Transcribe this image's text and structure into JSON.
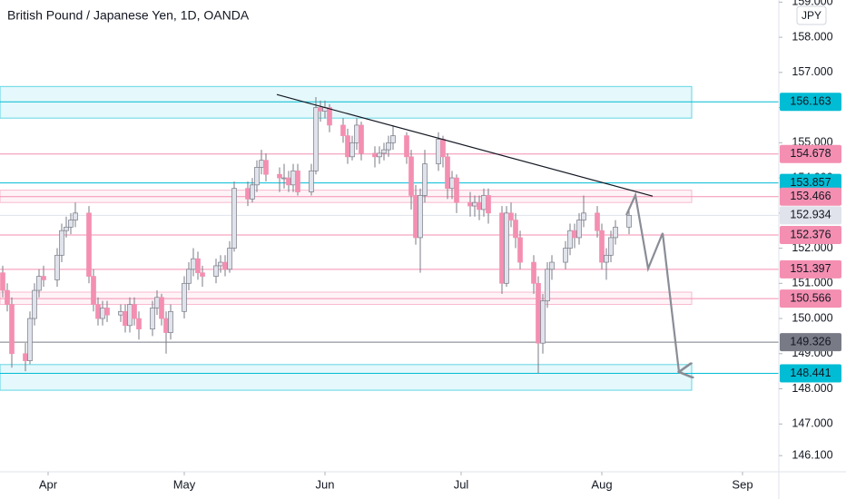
{
  "chart_data": {
    "type": "candlestick",
    "title": "British Pound / Japanese Yen, 1D, OANDA",
    "currency": "JPY",
    "up_color": "#e0e3eb",
    "down_color": "#f48fb1",
    "wick_color": "#787b86",
    "xlim": [
      80.4,
      252
    ],
    "xticks": [
      {
        "value": 91,
        "label": "Apr"
      },
      {
        "value": 121,
        "label": "May"
      },
      {
        "value": 152,
        "label": "Jun"
      },
      {
        "value": 182,
        "label": "Jul"
      },
      {
        "value": 213,
        "label": "Aug"
      },
      {
        "value": 244,
        "label": "Sep"
      }
    ],
    "ylim": [
      145.64,
      159.06
    ],
    "yticks": [
      {
        "value": 146.1,
        "label": "146.100"
      },
      {
        "value": 147,
        "label": "147.000"
      },
      {
        "value": 148,
        "label": "148.000"
      },
      {
        "value": 149,
        "label": "149.000"
      },
      {
        "value": 150,
        "label": "150.000"
      },
      {
        "value": 151,
        "label": "151.000"
      },
      {
        "value": 152,
        "label": "152.000"
      },
      {
        "value": 153,
        "label": "153.000"
      },
      {
        "value": 154,
        "label": "154.000"
      },
      {
        "value": 155,
        "label": "155.000"
      },
      {
        "value": 156,
        "label": "156.000"
      },
      {
        "value": 157,
        "label": "157.000"
      },
      {
        "value": 158,
        "label": "158.000"
      },
      {
        "value": 159,
        "label": "159.000"
      }
    ],
    "x": [
      81,
      82,
      83,
      86,
      87,
      88,
      89,
      90,
      93,
      94,
      95,
      96,
      97,
      100,
      101,
      102,
      103,
      104,
      107,
      108,
      109,
      110,
      111,
      114,
      115,
      116,
      117,
      118,
      121,
      122,
      123,
      124,
      125,
      128,
      129,
      130,
      131,
      132,
      135,
      136,
      137,
      138,
      139,
      142,
      143,
      144,
      145,
      146,
      149,
      150,
      151,
      152,
      153,
      156,
      157,
      158,
      159,
      160,
      163,
      164,
      165,
      166,
      167,
      170,
      171,
      172,
      173,
      174,
      177,
      178,
      179,
      180,
      181,
      184,
      185,
      186,
      187,
      188,
      191,
      192,
      193,
      194,
      195,
      198,
      199,
      200,
      201,
      202,
      205,
      206,
      207,
      208,
      209,
      212,
      213,
      214,
      215,
      216,
      219
    ],
    "ohlc": [
      [
        151.3,
        151.5,
        150.6,
        150.8
      ],
      [
        150.8,
        151.0,
        150.2,
        150.4
      ],
      [
        150.4,
        150.6,
        148.6,
        149.0
      ],
      [
        149.0,
        149.3,
        148.5,
        148.8
      ],
      [
        148.8,
        150.2,
        148.7,
        150.0
      ],
      [
        150.0,
        151.0,
        149.8,
        150.8
      ],
      [
        150.8,
        151.4,
        150.6,
        151.2
      ],
      [
        151.2,
        151.5,
        150.9,
        151.1
      ],
      [
        151.1,
        152.0,
        150.9,
        151.8
      ],
      [
        151.8,
        152.7,
        151.6,
        152.5
      ],
      [
        152.5,
        152.9,
        152.3,
        152.6
      ],
      [
        152.6,
        153.0,
        152.4,
        152.8
      ],
      [
        152.8,
        153.3,
        152.6,
        153.0
      ],
      [
        153.0,
        153.2,
        151.0,
        151.2
      ],
      [
        151.2,
        151.4,
        150.2,
        150.4
      ],
      [
        150.4,
        150.6,
        149.8,
        150.0
      ],
      [
        150.0,
        150.5,
        149.8,
        150.3
      ],
      [
        150.3,
        150.5,
        149.9,
        150.1
      ],
      [
        150.1,
        150.4,
        149.9,
        150.2
      ],
      [
        150.2,
        150.4,
        149.6,
        149.8
      ],
      [
        149.8,
        150.6,
        149.6,
        150.4
      ],
      [
        150.4,
        150.6,
        149.8,
        150.0
      ],
      [
        150.0,
        150.2,
        149.4,
        149.7
      ],
      [
        149.7,
        150.5,
        149.5,
        150.3
      ],
      [
        150.3,
        150.8,
        150.1,
        150.6
      ],
      [
        150.6,
        150.7,
        149.8,
        150.0
      ],
      [
        150.0,
        150.2,
        149.0,
        149.6
      ],
      [
        149.6,
        150.4,
        149.4,
        150.2
      ],
      [
        150.2,
        151.2,
        150.0,
        151.0
      ],
      [
        151.0,
        151.6,
        150.8,
        151.4
      ],
      [
        151.4,
        152.0,
        151.2,
        151.7
      ],
      [
        151.7,
        151.9,
        151.1,
        151.3
      ],
      [
        151.3,
        151.5,
        150.9,
        151.2
      ],
      [
        151.2,
        151.7,
        151.0,
        151.5
      ],
      [
        151.5,
        151.8,
        151.3,
        151.6
      ],
      [
        151.6,
        151.8,
        151.2,
        151.4
      ],
      [
        151.4,
        152.2,
        151.3,
        152.0
      ],
      [
        152.0,
        153.9,
        151.9,
        153.7
      ],
      [
        153.7,
        153.9,
        153.2,
        153.4
      ],
      [
        153.4,
        154.0,
        153.3,
        153.8
      ],
      [
        153.8,
        154.5,
        153.6,
        154.3
      ],
      [
        154.3,
        154.8,
        154.1,
        154.5
      ],
      [
        154.5,
        154.7,
        153.9,
        154.1
      ],
      [
        154.1,
        154.3,
        153.6,
        154.0
      ],
      [
        154.0,
        154.4,
        153.7,
        154.0
      ],
      [
        154.0,
        154.2,
        153.6,
        153.8
      ],
      [
        153.8,
        154.4,
        153.6,
        154.2
      ],
      [
        154.2,
        154.4,
        153.5,
        153.6
      ],
      [
        153.6,
        154.4,
        153.5,
        154.2
      ],
      [
        154.2,
        156.3,
        154.1,
        156.0
      ],
      [
        156.0,
        156.2,
        155.6,
        155.9
      ],
      [
        155.9,
        156.2,
        155.7,
        156.0
      ],
      [
        156.0,
        156.1,
        155.3,
        155.5
      ],
      [
        155.5,
        155.7,
        155.0,
        155.2
      ],
      [
        155.2,
        155.4,
        154.4,
        154.6
      ],
      [
        154.6,
        155.2,
        154.5,
        155.0
      ],
      [
        155.0,
        155.7,
        154.8,
        155.5
      ],
      [
        155.5,
        155.6,
        154.5,
        154.7
      ],
      [
        154.7,
        154.9,
        154.3,
        154.6
      ],
      [
        154.6,
        154.9,
        154.4,
        154.7
      ],
      [
        154.7,
        155.0,
        154.5,
        154.8
      ],
      [
        154.8,
        155.2,
        154.6,
        155.0
      ],
      [
        155.0,
        155.5,
        154.8,
        155.2
      ],
      [
        155.2,
        155.3,
        154.4,
        154.6
      ],
      [
        154.6,
        154.8,
        153.1,
        153.5
      ],
      [
        153.5,
        153.8,
        152.1,
        152.3
      ],
      [
        152.3,
        153.7,
        151.3,
        153.5
      ],
      [
        153.5,
        154.8,
        153.3,
        154.4
      ],
      [
        154.4,
        155.3,
        154.2,
        155.1
      ],
      [
        155.1,
        155.2,
        154.3,
        154.6
      ],
      [
        154.6,
        154.7,
        153.4,
        153.7
      ],
      [
        153.7,
        154.2,
        153.4,
        154.0
      ],
      [
        154.0,
        154.1,
        153.0,
        153.3
      ],
      [
        153.3,
        153.6,
        152.9,
        153.2
      ],
      [
        153.2,
        153.5,
        152.9,
        153.3
      ],
      [
        153.3,
        153.5,
        152.8,
        153.1
      ],
      [
        153.1,
        153.7,
        152.9,
        153.5
      ],
      [
        153.5,
        153.7,
        152.7,
        153.0
      ],
      [
        153.0,
        153.2,
        150.7,
        151.0
      ],
      [
        151.0,
        153.2,
        150.9,
        153.0
      ],
      [
        153.0,
        153.3,
        152.6,
        152.8
      ],
      [
        152.8,
        153.0,
        152.0,
        152.3
      ],
      [
        152.3,
        152.5,
        151.4,
        151.6
      ],
      [
        151.6,
        151.8,
        150.7,
        151.0
      ],
      [
        151.0,
        151.2,
        148.441,
        149.3
      ],
      [
        149.3,
        150.7,
        149.0,
        150.5
      ],
      [
        150.5,
        151.6,
        150.3,
        151.4
      ],
      [
        151.4,
        151.8,
        151.1,
        151.6
      ],
      [
        151.6,
        152.2,
        151.4,
        152.0
      ],
      [
        152.0,
        152.7,
        151.8,
        152.5
      ],
      [
        152.5,
        152.7,
        152.0,
        152.3
      ],
      [
        152.3,
        153.0,
        152.1,
        152.8
      ],
      [
        152.8,
        153.5,
        152.6,
        153.0
      ],
      [
        153.0,
        153.2,
        152.3,
        152.5
      ],
      [
        152.5,
        152.7,
        151.4,
        151.6
      ],
      [
        151.6,
        152.0,
        151.1,
        151.8
      ],
      [
        151.8,
        152.5,
        151.6,
        152.3
      ],
      [
        152.3,
        152.8,
        152.1,
        152.6
      ],
      [
        152.6,
        153.1,
        152.4,
        152.934
      ]
    ],
    "zones": [
      {
        "range": [
          155.7,
          156.6
        ],
        "x_end": 232.8,
        "color": "#00bcd4"
      },
      {
        "range": [
          153.3,
          153.65
        ],
        "x_end": 232.8,
        "color": "#f48fb1"
      },
      {
        "range": [
          150.4,
          150.75
        ],
        "x_end": 232.8,
        "color": "#f48fb1"
      },
      {
        "range": [
          147.96,
          148.69
        ],
        "x_end": 232.8,
        "color": "#00bcd4"
      }
    ],
    "levels": [
      {
        "value": 156.163,
        "color": "#00bcd4"
      },
      {
        "value": 154.678,
        "color": "#f48fb1"
      },
      {
        "value": 153.857,
        "color": "#00bcd4"
      },
      {
        "value": 153.466,
        "color": "#f48fb1"
      },
      {
        "value": 152.934,
        "color": "#e0e3eb"
      },
      {
        "value": 152.376,
        "color": "#f48fb1"
      },
      {
        "value": 151.397,
        "color": "#f48fb1"
      },
      {
        "value": 150.566,
        "color": "#f48fb1"
      },
      {
        "value": 149.326,
        "color": "#787b86"
      },
      {
        "value": 148.441,
        "color": "#00bcd4"
      }
    ],
    "trendline": {
      "x": [
        141.4,
        224.2
      ],
      "y": [
        156.37,
        153.48
      ],
      "color": "#131722"
    },
    "projection": {
      "x": [
        218.4,
        220.4,
        223.2,
        226.4,
        230.0
      ],
      "y": [
        152.94,
        153.51,
        151.42,
        152.43,
        148.48
      ],
      "color": "#8a8d96"
    }
  }
}
